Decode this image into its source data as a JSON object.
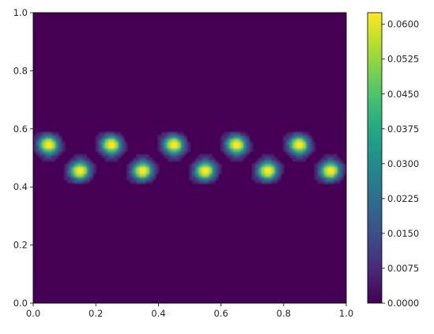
{
  "chart_data": {
    "type": "heatmap",
    "title": "",
    "xlabel": "",
    "ylabel": "",
    "xlim": [
      0.0,
      1.0
    ],
    "ylim": [
      0.0,
      1.0
    ],
    "x_ticks": [
      "0.0",
      "0.2",
      "0.4",
      "0.6",
      "0.8",
      "1.0"
    ],
    "y_ticks": [
      "0.0",
      "0.2",
      "0.4",
      "0.6",
      "0.8",
      "1.0"
    ],
    "colormap": "viridis",
    "colorbar": {
      "range": [
        0.0,
        0.0625
      ],
      "ticks": [
        "0.0000",
        "0.0075",
        "0.0150",
        "0.0225",
        "0.0300",
        "0.0375",
        "0.0450",
        "0.0525",
        "0.0600"
      ]
    },
    "peaks": [
      {
        "x": 0.05,
        "y": 0.545,
        "value": 0.0625
      },
      {
        "x": 0.15,
        "y": 0.455,
        "value": 0.0625
      },
      {
        "x": 0.25,
        "y": 0.545,
        "value": 0.0625
      },
      {
        "x": 0.35,
        "y": 0.455,
        "value": 0.0625
      },
      {
        "x": 0.45,
        "y": 0.545,
        "value": 0.0625
      },
      {
        "x": 0.55,
        "y": 0.455,
        "value": 0.0625
      },
      {
        "x": 0.65,
        "y": 0.545,
        "value": 0.0625
      },
      {
        "x": 0.75,
        "y": 0.455,
        "value": 0.0625
      },
      {
        "x": 0.85,
        "y": 0.545,
        "value": 0.0625
      },
      {
        "x": 0.95,
        "y": 0.455,
        "value": 0.0625
      }
    ],
    "band": {
      "center_y": 0.5,
      "half_width": 0.1
    }
  }
}
